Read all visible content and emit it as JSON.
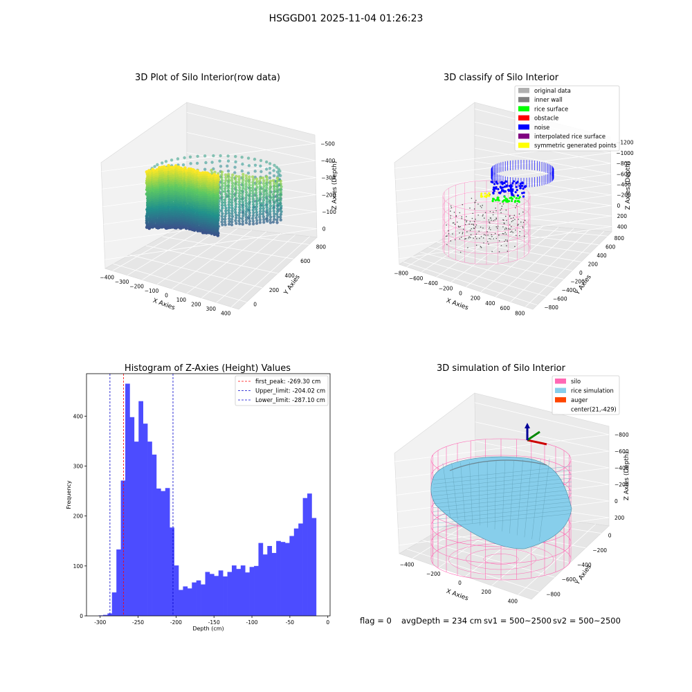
{
  "suptitle": "HSGGD01 2025-11-04 01:26:23",
  "status_line": {
    "flag": "flag = 0",
    "avg": "avgDepth = 234 cm",
    "sv1": "sv1 = 500~2500",
    "sv2": "sv2 = 500~2500"
  },
  "colors": {
    "histogram_bar": "#4c4cff",
    "peak_line": "#ff0000",
    "limit_line": "#0000cc",
    "silo_wire": "#ff69b4",
    "rice_surface": "#87ceeb",
    "noise": "#0000ff",
    "rice_points": "#00ff00",
    "symmetric_points": "#ffff00",
    "inner_points": "#555555",
    "axis_x": "#cc0000",
    "axis_y": "#008800",
    "axis_z": "#000099"
  },
  "chart_data": [
    {
      "type": "scatter",
      "subtype": "3d",
      "title": "3D Plot of Silo Interior(row data)",
      "xlabel": "X Axies",
      "ylabel": "Y Axies",
      "zlabel": "Z Axies (Depth)",
      "xticks": [
        "−400",
        "−300",
        "−200",
        "−100",
        "0",
        "100",
        "200",
        "300",
        "400"
      ],
      "yticks": [
        "0",
        "200",
        "400",
        "600",
        "800"
      ],
      "zticks": [
        "0",
        "−100",
        "−200",
        "−300",
        "−400",
        "−500"
      ],
      "xlim": [
        -400,
        400
      ],
      "ylim": [
        0,
        800
      ],
      "zlim": [
        -500,
        0
      ],
      "colormap": "viridis"
    },
    {
      "type": "scatter",
      "subtype": "3d",
      "title": "3D classify of Silo Interior",
      "xlabel": "X Axies",
      "ylabel": "Y Axies",
      "zlabel": "Z Axies (Depth)",
      "xticks": [
        "−800",
        "−600",
        "−400",
        "−200",
        "0",
        "200",
        "400",
        "600",
        "800"
      ],
      "yticks": [
        "−800",
        "−600",
        "−400",
        "−200",
        "0",
        "200",
        "400",
        "600",
        "800"
      ],
      "zticks": [
        "400",
        "200",
        "0",
        "−200",
        "−400",
        "−600",
        "−800",
        "−1000",
        "−1200"
      ],
      "legend": [
        {
          "label": "original data",
          "color": "#b0b0b0"
        },
        {
          "label": "inner wall",
          "color": "#808080"
        },
        {
          "label": "rice surface",
          "color": "#00ff00"
        },
        {
          "label": "obstacle",
          "color": "#ff0000"
        },
        {
          "label": "noise",
          "color": "#0000ff"
        },
        {
          "label": "interpolated rice surface",
          "color": "#800080"
        },
        {
          "label": "symmetric generated points",
          "color": "#ffff00"
        }
      ],
      "legend_position": "top-right"
    },
    {
      "type": "bar",
      "subtype": "histogram",
      "title": "Histogram of Z-Axies (Height) Values",
      "xlabel": "Depth (cm)",
      "ylabel": "Frequency",
      "xlim": [
        -318,
        3
      ],
      "ylim": [
        0,
        485
      ],
      "xticks": [
        -300,
        -250,
        -200,
        -150,
        -100,
        -50,
        0
      ],
      "yticks": [
        0,
        100,
        200,
        300,
        400
      ],
      "bin_start": -302,
      "bin_width": 5.85,
      "values": [
        1,
        2,
        5,
        47,
        133,
        271,
        465,
        398,
        349,
        430,
        385,
        349,
        323,
        255,
        250,
        256,
        177,
        101,
        52,
        59,
        55,
        67,
        71,
        63,
        88,
        84,
        80,
        91,
        79,
        88,
        101,
        94,
        101,
        87,
        98,
        100,
        146,
        123,
        140,
        126,
        150,
        148,
        146,
        160,
        175,
        185,
        236,
        245,
        196
      ],
      "vlines": [
        {
          "label": "first_peak: -269.30 cm",
          "x": -269.3,
          "color": "#ff0000"
        },
        {
          "label": "Upper_limit: -204.02 cm",
          "x": -204.02,
          "color": "#0000cc"
        },
        {
          "label": "Lower_limit: -287.10 cm",
          "x": -287.1,
          "color": "#0000cc"
        }
      ],
      "legend_position": "top-right",
      "grid": false
    },
    {
      "type": "3d-surface",
      "title": "3D simulation of Silo Interior",
      "xlabel": "X Axies",
      "ylabel": "Y Axies",
      "zlabel": "Z Axies (Depth)",
      "xticks": [
        "−400",
        "−200",
        "0",
        "200",
        "400"
      ],
      "yticks": [
        "−800",
        "−600",
        "−400",
        "−200",
        "0"
      ],
      "zticks": [
        "200",
        "0",
        "−200",
        "−400",
        "−600",
        "−800"
      ],
      "legend": [
        {
          "label": "silo",
          "color": "#ff69b4"
        },
        {
          "label": "rice simulation",
          "color": "#87ceeb"
        },
        {
          "label": "auger",
          "color": "#ff4500"
        },
        {
          "label": "center(21,-429)",
          "color": ""
        }
      ],
      "legend_position": "top-right"
    }
  ]
}
